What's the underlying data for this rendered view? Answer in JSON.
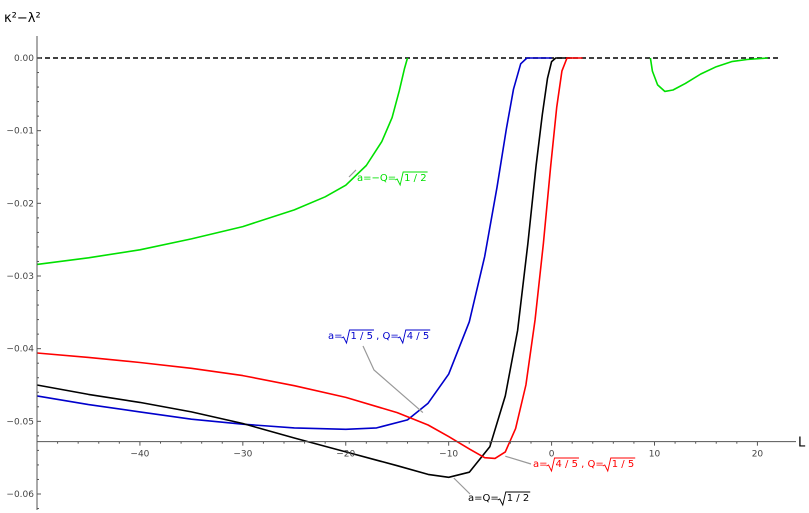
{
  "chart_data": {
    "type": "line",
    "title": "",
    "xlabel": "L",
    "ylabel": "κ²−λ²",
    "xlim": [
      -50,
      22
    ],
    "ylim": [
      -0.061,
      0.002
    ],
    "x_axis_at_y": -0.0528,
    "y_axis_at_x": -50,
    "x_ticks": [
      -40,
      -30,
      -20,
      -10,
      0,
      10,
      20
    ],
    "x_tick_labels": [
      "−40",
      "−30",
      "−20",
      "−10",
      "0",
      "10",
      "20"
    ],
    "y_ticks": [
      0.0,
      -0.01,
      -0.02,
      -0.03,
      -0.04,
      -0.05,
      -0.06
    ],
    "y_tick_labels": [
      "0.00",
      "−0.01",
      "−0.02",
      "−0.03",
      "−0.04",
      "−0.05",
      "−0.06"
    ],
    "grid": false,
    "reference_line": {
      "y": 0,
      "style": "dashed",
      "color": "#000000"
    },
    "series": [
      {
        "color": "#00e000",
        "segments": [
          [
            [
              -50,
              -0.0284
            ],
            [
              -45,
              -0.0275
            ],
            [
              -40,
              -0.0264
            ],
            [
              -35,
              -0.0249
            ],
            [
              -30,
              -0.0232
            ],
            [
              -25,
              -0.0209
            ],
            [
              -22,
              -0.0191
            ],
            [
              -20,
              -0.0175
            ],
            [
              -18,
              -0.0148
            ],
            [
              -16.5,
              -0.0115
            ],
            [
              -15.5,
              -0.0082
            ],
            [
              -14.8,
              -0.0045
            ],
            [
              -14.3,
              -0.0015
            ],
            [
              -14.0,
              0.0
            ]
          ],
          [
            [
              9.6,
              0.0
            ],
            [
              9.8,
              -0.0018
            ],
            [
              10.3,
              -0.0037
            ],
            [
              11,
              -0.0046
            ],
            [
              11.8,
              -0.0044
            ],
            [
              13,
              -0.0035
            ],
            [
              14.5,
              -0.0022
            ],
            [
              16,
              -0.0012
            ],
            [
              17.5,
              -0.0005
            ],
            [
              19,
              -0.0002
            ],
            [
              21,
              0.0
            ]
          ]
        ],
        "annotation": {
          "text": "a=−Q=√(1/2)",
          "parts": [
            "a=−Q=",
            "1 / 2"
          ],
          "point": [
            -19,
            -0.0154
          ]
        }
      },
      {
        "color": "#0000cc",
        "segments": [
          [
            [
              -50,
              -0.0465
            ],
            [
              -45,
              -0.0477
            ],
            [
              -40,
              -0.0487
            ],
            [
              -35,
              -0.0497
            ],
            [
              -30,
              -0.0504
            ],
            [
              -25,
              -0.0509
            ],
            [
              -20,
              -0.0511
            ],
            [
              -17,
              -0.0509
            ],
            [
              -14,
              -0.0498
            ],
            [
              -12,
              -0.0475
            ],
            [
              -10,
              -0.0435
            ],
            [
              -8,
              -0.0363
            ],
            [
              -6.5,
              -0.0273
            ],
            [
              -5.3,
              -0.0178
            ],
            [
              -4.4,
              -0.0098
            ],
            [
              -3.7,
              -0.0043
            ],
            [
              -3.0,
              -0.0008
            ],
            [
              -2.4,
              0.0
            ],
            [
              0,
              0.0
            ]
          ]
        ],
        "annotation": {
          "text": "a=√(1/5) , Q=√(4/5)",
          "parts": [
            "a=",
            "1 / 5",
            " , Q=",
            "4 / 5"
          ],
          "point": [
            -12.5,
            -0.0488
          ]
        }
      },
      {
        "color": "#000000",
        "segments": [
          [
            [
              -50,
              -0.045
            ],
            [
              -45,
              -0.0463
            ],
            [
              -40,
              -0.0474
            ],
            [
              -35,
              -0.0487
            ],
            [
              -30,
              -0.0503
            ],
            [
              -25,
              -0.0523
            ],
            [
              -20,
              -0.0542
            ],
            [
              -15,
              -0.0561
            ],
            [
              -12,
              -0.0573
            ],
            [
              -10,
              -0.0577
            ],
            [
              -8,
              -0.057
            ],
            [
              -6,
              -0.0535
            ],
            [
              -4.5,
              -0.0465
            ],
            [
              -3.3,
              -0.0375
            ],
            [
              -2.3,
              -0.0255
            ],
            [
              -1.5,
              -0.0148
            ],
            [
              -0.9,
              -0.0078
            ],
            [
              -0.4,
              -0.0028
            ],
            [
              0,
              -0.0005
            ],
            [
              0.4,
              0.0
            ],
            [
              2,
              0.0
            ]
          ]
        ],
        "annotation": {
          "text": "a=Q=√(1/2)",
          "parts": [
            "a=Q=",
            "1 / 2"
          ],
          "point": [
            -9.5,
            -0.0578
          ]
        }
      },
      {
        "color": "#ff0000",
        "segments": [
          [
            [
              -50,
              -0.0406
            ],
            [
              -45,
              -0.0412
            ],
            [
              -40,
              -0.0419
            ],
            [
              -35,
              -0.0427
            ],
            [
              -30,
              -0.0437
            ],
            [
              -25,
              -0.0451
            ],
            [
              -20,
              -0.0467
            ],
            [
              -15,
              -0.0488
            ],
            [
              -12,
              -0.0505
            ],
            [
              -10,
              -0.0521
            ],
            [
              -8,
              -0.0538
            ],
            [
              -6.5,
              -0.055
            ],
            [
              -5.5,
              -0.0551
            ],
            [
              -4.5,
              -0.0542
            ],
            [
              -3.5,
              -0.051
            ],
            [
              -2.5,
              -0.045
            ],
            [
              -1.6,
              -0.036
            ],
            [
              -0.8,
              -0.0255
            ],
            [
              -0.1,
              -0.015
            ],
            [
              0.5,
              -0.0068
            ],
            [
              1.0,
              -0.0018
            ],
            [
              1.5,
              0.0
            ],
            [
              3,
              0.0
            ]
          ]
        ],
        "annotation": {
          "text": "a=√(4/5) , Q=√(1/5)",
          "parts": [
            "a=",
            "4 / 5",
            " , Q=",
            "1 / 5"
          ],
          "point": [
            -4.5,
            -0.0548
          ]
        }
      }
    ]
  }
}
